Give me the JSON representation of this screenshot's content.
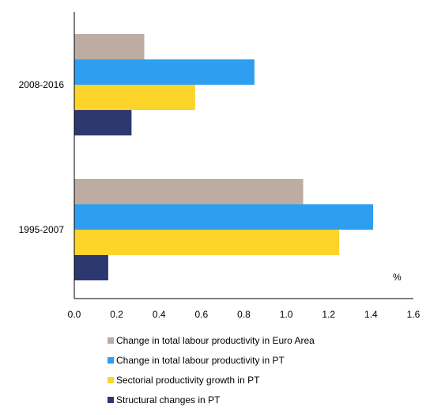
{
  "chart_data": {
    "type": "bar",
    "orientation": "horizontal",
    "title": "",
    "xlabel": "",
    "ylabel": "",
    "unit_label": "%",
    "xlim": [
      0,
      1.6
    ],
    "xticks": [
      "0.0",
      "0.2",
      "0.4",
      "0.6",
      "0.8",
      "1.0",
      "1.2",
      "1.4",
      "1.6"
    ],
    "categories": [
      "2008-2016",
      "1995-2007"
    ],
    "series": [
      {
        "name": "Change in total labour productivity in Euro Area",
        "color": "#bcaca2",
        "values": [
          0.33,
          1.08
        ]
      },
      {
        "name": "Change in total labour productivity in PT",
        "color": "#2e9ef0",
        "values": [
          0.85,
          1.41
        ]
      },
      {
        "name": "Sectorial productivity growth in PT",
        "color": "#fdd42a",
        "values": [
          0.57,
          1.25
        ]
      },
      {
        "name": "Structural changes in PT",
        "color": "#2e3870",
        "values": [
          0.27,
          0.16
        ]
      }
    ],
    "grid": false,
    "legend_position": "bottom"
  }
}
